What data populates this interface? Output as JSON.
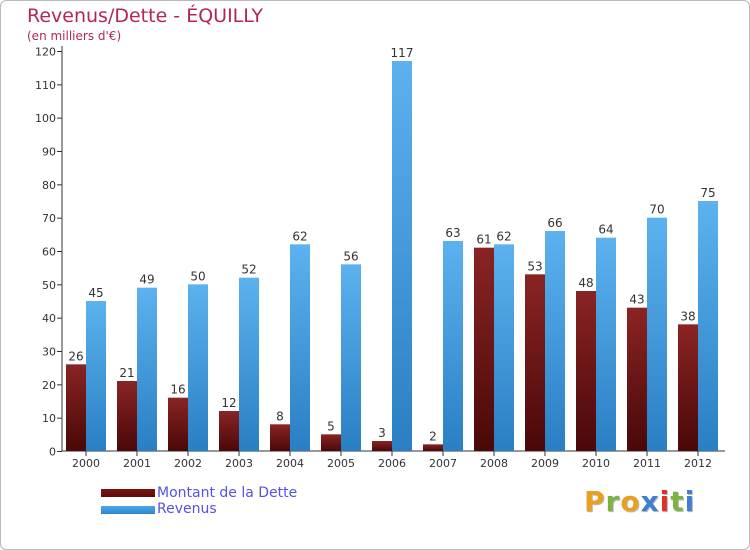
{
  "chart_data": {
    "type": "bar",
    "title": "Revenus/Dette - ÉQUILLY",
    "subtitle": "(en milliers d'€)",
    "categories": [
      "2000",
      "2001",
      "2002",
      "2003",
      "2004",
      "2005",
      "2006",
      "2007",
      "2008",
      "2009",
      "2010",
      "2011",
      "2012"
    ],
    "series": [
      {
        "name": "Montant de la Dette",
        "values": [
          26,
          21,
          16,
          12,
          8,
          5,
          3,
          2,
          61,
          53,
          48,
          43,
          38
        ],
        "color": "#7b1a1a"
      },
      {
        "name": "Revenus",
        "values": [
          45,
          49,
          50,
          52,
          62,
          56,
          117,
          63,
          62,
          66,
          64,
          70,
          75
        ],
        "color": "#4ea7e8"
      }
    ],
    "yticks": [
      0,
      10,
      20,
      30,
      40,
      50,
      60,
      70,
      80,
      90,
      100,
      110,
      120
    ],
    "ylim": [
      0,
      120
    ],
    "xlabel": "",
    "ylabel": "",
    "grid": false,
    "legend": "bottom-left"
  },
  "logo": {
    "letters": [
      "P",
      "r",
      "o",
      "x",
      "i",
      "t",
      "i"
    ],
    "colors": [
      "#e8a020",
      "#7cb342",
      "#e8a020",
      "#3f7fd0",
      "#e0302c",
      "#7cb342",
      "#3f7fd0"
    ]
  }
}
